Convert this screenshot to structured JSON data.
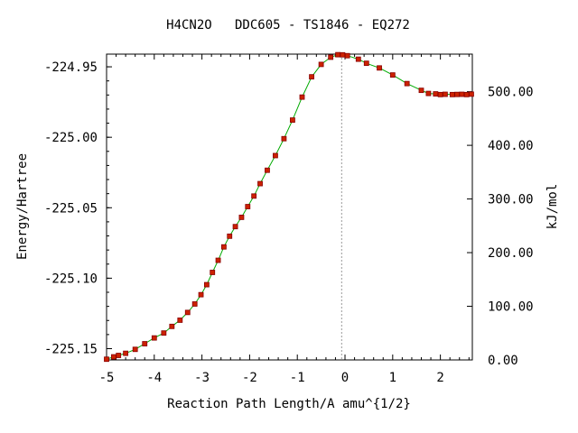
{
  "chart_data": {
    "type": "line",
    "title": "H4CN2O   DDC605 - TS1846 - EQ272",
    "xlabel": "Reaction Path Length/A amu^{1/2}",
    "ylabel": "Energy/Hartree",
    "y2label": "kJ/mol",
    "xlim": [
      -5.0,
      2.67
    ],
    "ylim": [
      -225.158,
      -224.941
    ],
    "y2lim": [
      0.0,
      570.0
    ],
    "x_ticks": [
      -5,
      -4,
      -3,
      -2,
      -1,
      0,
      1,
      2
    ],
    "x_tick_labels": [
      "-5",
      "-4",
      "-3",
      "-2",
      "-1",
      "0",
      "1",
      "2"
    ],
    "y_ticks": [
      -225.15,
      -225.1,
      -225.05,
      -225.0,
      -224.95
    ],
    "y_tick_labels": [
      "-225.15",
      "-225.10",
      "-225.05",
      "-225.00",
      "-224.95"
    ],
    "y2_ticks": [
      0,
      100,
      200,
      300,
      400,
      500
    ],
    "y2_tick_labels": [
      "0.00",
      "100.00",
      "200.00",
      "300.00",
      "400.00",
      "500.00"
    ],
    "ts_marker_x": -0.07,
    "grid": false,
    "colors": {
      "line": "#00aa00",
      "marker": "#cc2200",
      "marker_edge": "#880000",
      "ts_line": "#999999"
    },
    "series": [
      {
        "x": [
          -5.0,
          -4.85,
          -4.75,
          -4.6,
          -4.4,
          -4.2,
          -4.0,
          -3.8,
          -3.63,
          -3.46,
          -3.3,
          -3.15,
          -3.02,
          -2.9,
          -2.78,
          -2.66,
          -2.54,
          -2.42,
          -2.3,
          -2.17,
          -2.04,
          -1.91,
          -1.78,
          -1.63,
          -1.46,
          -1.28,
          -1.1,
          -0.9,
          -0.7,
          -0.5,
          -0.3,
          -0.15,
          -0.05,
          0.05,
          0.28,
          0.45,
          0.72,
          1.0,
          1.3,
          1.6,
          1.75,
          1.9,
          2.0,
          2.1,
          2.25,
          2.35,
          2.45,
          2.55,
          2.65
        ],
        "y": [
          -225.1575,
          -225.1558,
          -225.1548,
          -225.1533,
          -225.1505,
          -225.1465,
          -225.1424,
          -225.1389,
          -225.1342,
          -225.1298,
          -225.1243,
          -225.1183,
          -225.1117,
          -225.1046,
          -225.0959,
          -225.0873,
          -225.0778,
          -225.0702,
          -225.0634,
          -225.0568,
          -225.0492,
          -225.0417,
          -225.0329,
          -225.0234,
          -225.013,
          -225.001,
          -224.9878,
          -224.9715,
          -224.9571,
          -224.9483,
          -224.9432,
          -224.9414,
          -224.9415,
          -224.9421,
          -224.9446,
          -224.9475,
          -224.9508,
          -224.9558,
          -224.9619,
          -224.9667,
          -224.9689,
          -224.9692,
          -224.9697,
          -224.9695,
          -224.9697,
          -224.9696,
          -224.9695,
          -224.9697,
          -224.9694
        ]
      }
    ]
  }
}
